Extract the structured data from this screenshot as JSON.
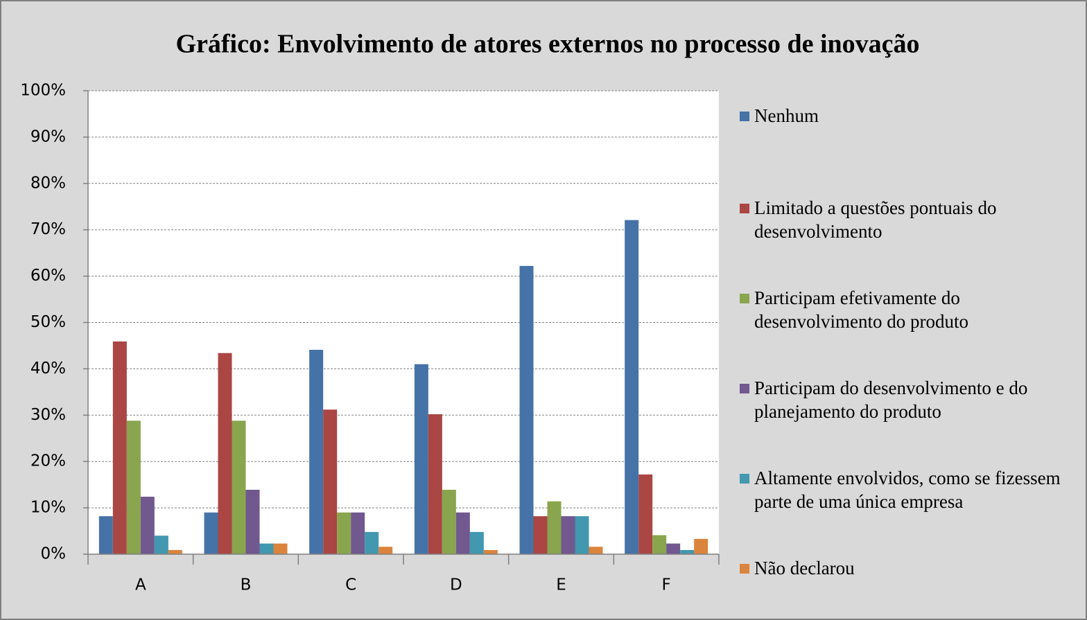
{
  "chart_data": {
    "type": "bar",
    "title": "Gráfico: Envolvimento de atores externos no processo de inovação",
    "categories": [
      "A",
      "B",
      "C",
      "D",
      "E",
      "F"
    ],
    "series": [
      {
        "name": "Nenhum",
        "color": "#4572a7",
        "values": [
          8.2,
          9.0,
          44.1,
          41.0,
          62.2,
          72.1
        ]
      },
      {
        "name": "Limitado a questões pontuais do desenvolvimento",
        "color": "#aa4643",
        "values": [
          45.9,
          43.4,
          31.2,
          30.2,
          8.2,
          17.2
        ]
      },
      {
        "name": "Participam efetivamente do desenvolvimento do produto",
        "color": "#89a54e",
        "values": [
          28.8,
          28.8,
          9.0,
          13.9,
          11.4,
          4.1
        ]
      },
      {
        "name": "Participam do desenvolvimento e do planejamento do produto",
        "color": "#71588f",
        "values": [
          12.4,
          13.9,
          9.0,
          9.0,
          8.2,
          2.3
        ]
      },
      {
        "name": "Altamente envolvidos, como se fizessem parte de uma única empresa",
        "color": "#4198af",
        "values": [
          4.0,
          2.3,
          4.8,
          4.8,
          8.2,
          0.9
        ]
      },
      {
        "name": "Não declarou",
        "color": "#db843d",
        "values": [
          0.9,
          2.3,
          1.6,
          0.9,
          1.6,
          3.3
        ]
      }
    ],
    "ylim": [
      0,
      100
    ],
    "yticks": [
      {
        "value": 0,
        "label": "0%"
      },
      {
        "value": 10,
        "label": "10%"
      },
      {
        "value": 20,
        "label": "20%"
      },
      {
        "value": 30,
        "label": "30%"
      },
      {
        "value": 40,
        "label": "40%"
      },
      {
        "value": 50,
        "label": "50%"
      },
      {
        "value": 60,
        "label": "60%"
      },
      {
        "value": 70,
        "label": "70%"
      },
      {
        "value": 80,
        "label": "80%"
      },
      {
        "value": 90,
        "label": "90%"
      },
      {
        "value": 100,
        "label": "100%"
      }
    ],
    "grid": true,
    "legend": "right"
  }
}
